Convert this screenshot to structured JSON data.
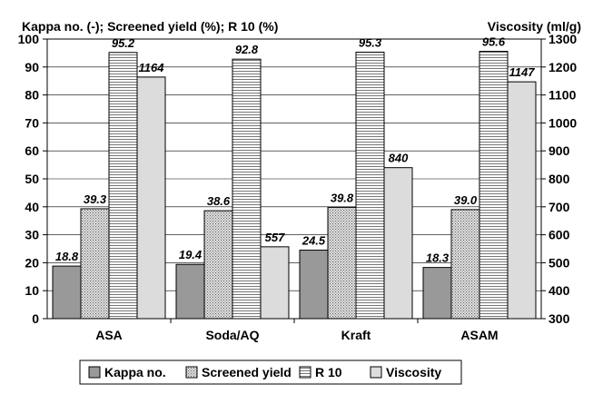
{
  "chart_data": {
    "type": "bar",
    "title_left": "Kappa no. (-); Screened yield (%); R 10 (%)",
    "title_right": "Viscosity (ml/g)",
    "categories": [
      "ASA",
      "Soda/AQ",
      "Kraft",
      "ASAM"
    ],
    "series": [
      {
        "name": "Kappa no.",
        "axis": "left",
        "values": [
          18.8,
          19.4,
          24.5,
          18.3
        ],
        "labels": [
          "18.8",
          "19.4",
          "24.5",
          "18.3"
        ],
        "fill": "#999999"
      },
      {
        "name": "Screened yield",
        "axis": "left",
        "values": [
          39.3,
          38.6,
          39.8,
          39.0
        ],
        "labels": [
          "39.3",
          "38.6",
          "39.8",
          "39.0"
        ],
        "fill": "#c8c8c8"
      },
      {
        "name": "R 10",
        "axis": "left",
        "values": [
          95.2,
          92.8,
          95.3,
          95.6
        ],
        "labels": [
          "95.2",
          "92.8",
          "95.3",
          "95.6"
        ],
        "fill": "#e6e6e6"
      },
      {
        "name": "Viscosity",
        "axis": "right",
        "values": [
          1164,
          557,
          840,
          1147
        ],
        "labels": [
          "1164",
          "557",
          "840",
          "1147"
        ],
        "fill": "#dcdcdc"
      }
    ],
    "ylim_left": [
      0,
      100
    ],
    "ylim_right": [
      300,
      1300
    ],
    "yticks_left": [
      "0",
      "10",
      "20",
      "30",
      "40",
      "50",
      "60",
      "70",
      "80",
      "90",
      "100"
    ],
    "yticks_right": [
      "300",
      "400",
      "500",
      "600",
      "700",
      "800",
      "900",
      "1000",
      "1100",
      "1200",
      "1300"
    ],
    "grid": "horizontal",
    "legend": "bottom"
  }
}
